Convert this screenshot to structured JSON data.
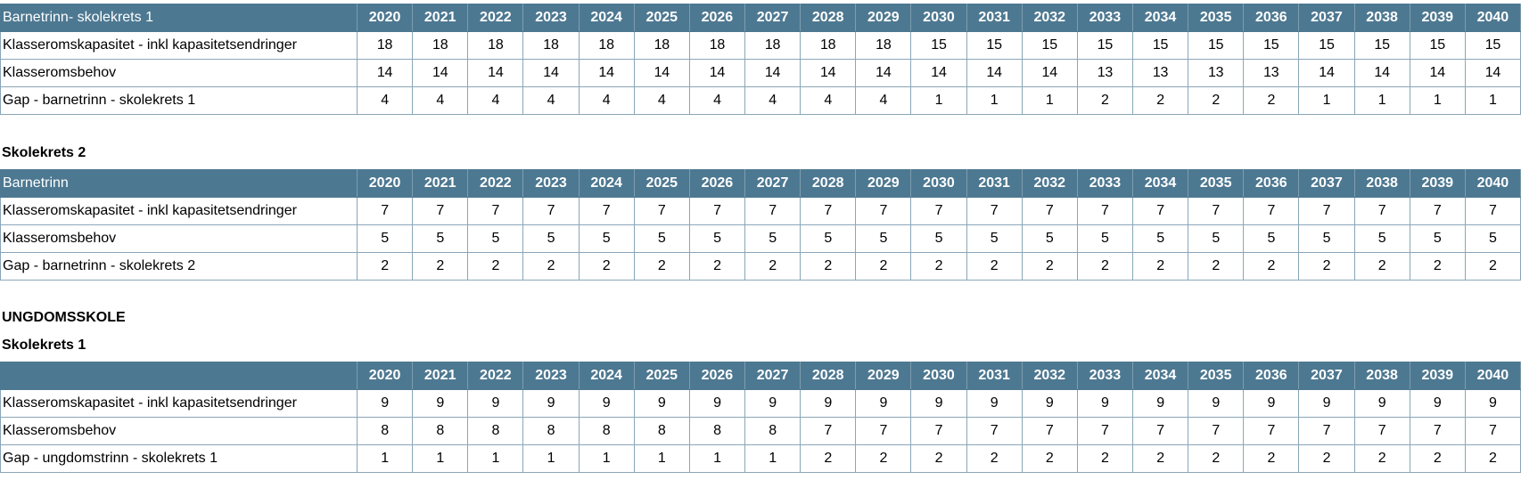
{
  "years": [
    "2020",
    "2021",
    "2022",
    "2023",
    "2024",
    "2025",
    "2026",
    "2027",
    "2028",
    "2029",
    "2030",
    "2031",
    "2032",
    "2033",
    "2034",
    "2035",
    "2036",
    "2037",
    "2038",
    "2039",
    "2040"
  ],
  "tables": [
    {
      "heading": "",
      "header_label": "Barnetrinn- skolekrets 1",
      "rows": [
        {
          "label": "Klasseromskapasitet - inkl kapasitetsendringer",
          "values": [
            "18",
            "18",
            "18",
            "18",
            "18",
            "18",
            "18",
            "18",
            "18",
            "18",
            "15",
            "15",
            "15",
            "15",
            "15",
            "15",
            "15",
            "15",
            "15",
            "15",
            "15"
          ]
        },
        {
          "label": "Klasseromsbehov",
          "values": [
            "14",
            "14",
            "14",
            "14",
            "14",
            "14",
            "14",
            "14",
            "14",
            "14",
            "14",
            "14",
            "14",
            "13",
            "13",
            "13",
            "13",
            "14",
            "14",
            "14",
            "14"
          ]
        },
        {
          "label": "Gap - barnetrinn - skolekrets 1",
          "values": [
            "4",
            "4",
            "4",
            "4",
            "4",
            "4",
            "4",
            "4",
            "4",
            "4",
            "1",
            "1",
            "1",
            "2",
            "2",
            "2",
            "2",
            "1",
            "1",
            "1",
            "1"
          ]
        }
      ]
    },
    {
      "heading": "Skolekrets 2",
      "header_label": "Barnetrinn",
      "rows": [
        {
          "label": "Klasseromskapasitet - inkl kapasitetsendringer",
          "values": [
            "7",
            "7",
            "7",
            "7",
            "7",
            "7",
            "7",
            "7",
            "7",
            "7",
            "7",
            "7",
            "7",
            "7",
            "7",
            "7",
            "7",
            "7",
            "7",
            "7",
            "7"
          ]
        },
        {
          "label": "Klasseromsbehov",
          "values": [
            "5",
            "5",
            "5",
            "5",
            "5",
            "5",
            "5",
            "5",
            "5",
            "5",
            "5",
            "5",
            "5",
            "5",
            "5",
            "5",
            "5",
            "5",
            "5",
            "5",
            "5"
          ]
        },
        {
          "label": "Gap - barnetrinn - skolekrets 2",
          "values": [
            "2",
            "2",
            "2",
            "2",
            "2",
            "2",
            "2",
            "2",
            "2",
            "2",
            "2",
            "2",
            "2",
            "2",
            "2",
            "2",
            "2",
            "2",
            "2",
            "2",
            "2"
          ]
        }
      ]
    },
    {
      "section": "UNGDOMSSKOLE",
      "heading": "Skolekrets 1",
      "header_label": "",
      "rows": [
        {
          "label": "Klasseromskapasitet - inkl kapasitetsendringer",
          "values": [
            "9",
            "9",
            "9",
            "9",
            "9",
            "9",
            "9",
            "9",
            "9",
            "9",
            "9",
            "9",
            "9",
            "9",
            "9",
            "9",
            "9",
            "9",
            "9",
            "9",
            "9"
          ]
        },
        {
          "label": "Klasseromsbehov",
          "values": [
            "8",
            "8",
            "8",
            "8",
            "8",
            "8",
            "8",
            "8",
            "7",
            "7",
            "7",
            "7",
            "7",
            "7",
            "7",
            "7",
            "7",
            "7",
            "7",
            "7",
            "7"
          ]
        },
        {
          "label": "Gap - ungdomstrinn - skolekrets 1",
          "values": [
            "1",
            "1",
            "1",
            "1",
            "1",
            "1",
            "1",
            "1",
            "2",
            "2",
            "2",
            "2",
            "2",
            "2",
            "2",
            "2",
            "2",
            "2",
            "2",
            "2",
            "2"
          ]
        }
      ]
    }
  ],
  "colors": {
    "header_bg": "#4d7891",
    "header_text": "#ffffff",
    "grid_line": "#8aa6b8"
  }
}
